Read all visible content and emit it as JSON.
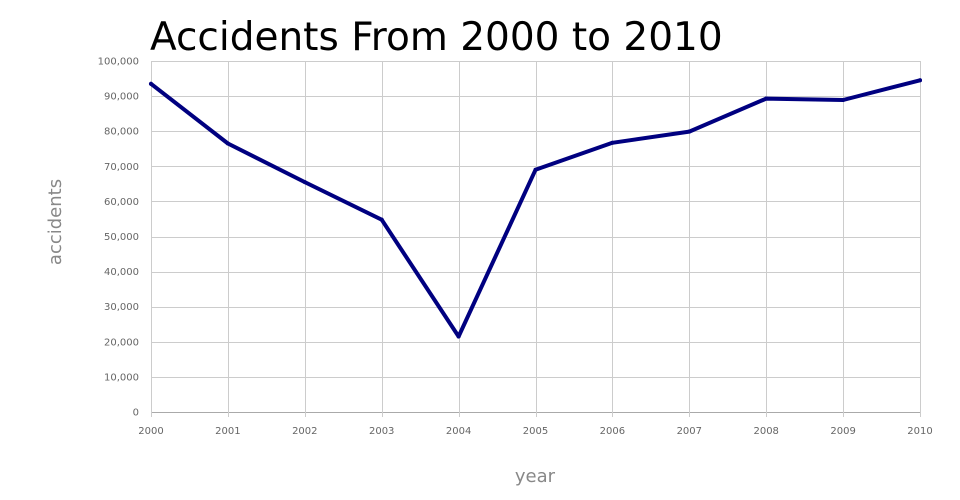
{
  "chart_data": {
    "type": "line",
    "title": "Accidents From 2000 to 2010",
    "xlabel": "year",
    "ylabel": "accidents",
    "x": [
      "2000",
      "2001",
      "2002",
      "2003",
      "2004",
      "2005",
      "2006",
      "2007",
      "2008",
      "2009",
      "2010"
    ],
    "series": [
      {
        "values": [
          93500,
          76500,
          65500,
          54800,
          21500,
          69000,
          76700,
          79900,
          89300,
          88900,
          94500
        ]
      }
    ],
    "ylim": [
      0,
      100000
    ],
    "yticks": [
      0,
      10000,
      20000,
      30000,
      40000,
      50000,
      60000,
      70000,
      80000,
      90000,
      100000
    ],
    "ytick_labels": [
      "0",
      "10,000",
      "20,000",
      "30,000",
      "40,000",
      "50,000",
      "60,000",
      "70,000",
      "80,000",
      "90,000",
      "100,000"
    ],
    "grid": true,
    "legend": "none",
    "line_color": "#000080"
  }
}
